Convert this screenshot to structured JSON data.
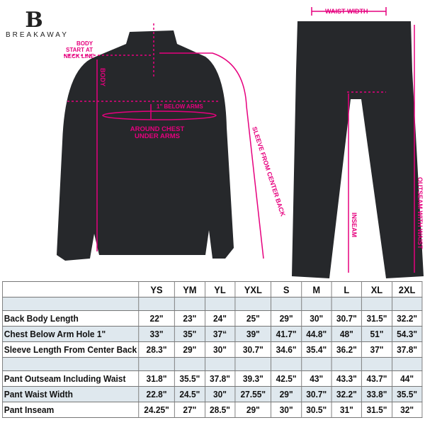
{
  "brand": {
    "name": "BREAKAWAY",
    "mark": "B"
  },
  "annotations": {
    "body_start": [
      "BODY",
      "START AT",
      "NECK LINE"
    ],
    "body": "BODY",
    "below_arms": "1\" BELOW ARMS",
    "around_chest": [
      "AROUND CHEST",
      "UNDER ARMS"
    ],
    "sleeve": "SLEEVE FROM CENTER BACK",
    "waist_width": "WAIST WIDTH",
    "inseam": "INSEAM",
    "outseam": "OUTSEAM WITH WAIST"
  },
  "colors": {
    "accent": "#e6007e",
    "garment": "#26282b",
    "row_highlight": "#dfe8ee"
  },
  "table": {
    "sizes": [
      "YS",
      "YM",
      "YL",
      "YXL",
      "S",
      "M",
      "L",
      "XL",
      "2XL"
    ],
    "rows": [
      {
        "label": "",
        "values": [
          "",
          "",
          "",
          "",
          "",
          "",
          "",
          "",
          ""
        ],
        "style": "blue blank"
      },
      {
        "label": "Back Body Length",
        "values": [
          "22\"",
          "23\"",
          "24\"",
          "25\"",
          "29\"",
          "30\"",
          "30.7\"",
          "31.5\"",
          "32.2\""
        ],
        "style": ""
      },
      {
        "label": "Chest Below Arm Hole 1\"",
        "values": [
          "33\"",
          "35\"",
          "37“",
          "39\"",
          "41.7\"",
          "44.8\"",
          "48\"",
          "51\"",
          "54.3\""
        ],
        "style": "blue"
      },
      {
        "label": "Sleeve Length From Center Back",
        "values": [
          "28.3\"",
          "29\"",
          "30\"",
          "30.7\"",
          "34.6\"",
          "35.4\"",
          "36.2\"",
          "37\"",
          "37.8\""
        ],
        "style": ""
      },
      {
        "label": "",
        "values": [
          "",
          "",
          "",
          "",
          "",
          "",
          "",
          "",
          ""
        ],
        "style": "blue blank"
      },
      {
        "label": "Pant Outseam Including Waist",
        "values": [
          "31.8\"",
          "35.5\"",
          "37.8\"",
          "39.3\"",
          "42.5\"",
          "43\"",
          "43.3\"",
          "43.7\"",
          "44\""
        ],
        "style": ""
      },
      {
        "label": "Pant Waist Width",
        "values": [
          "22.8\"",
          "24.5\"",
          "30\"",
          "27.55\"",
          "29\"",
          "30.7\"",
          "32.2\"",
          "33.8\"",
          "35.5\""
        ],
        "style": "blue"
      },
      {
        "label": "Pant Inseam",
        "values": [
          "24.25\"",
          "27\"",
          "28.5\"",
          "29\"",
          "30\"",
          "30.5\"",
          "31\"",
          "31.5\"",
          "32\""
        ],
        "style": ""
      }
    ]
  }
}
